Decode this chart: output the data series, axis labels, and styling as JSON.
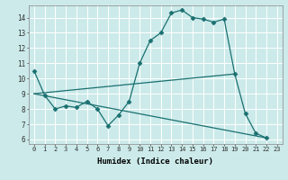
{
  "xlabel": "Humidex (Indice chaleur)",
  "bg_color": "#cceaea",
  "grid_color": "#ffffff",
  "line_color": "#1a7070",
  "xlim": [
    -0.5,
    23.5
  ],
  "ylim": [
    5.7,
    14.8
  ],
  "yticks": [
    6,
    7,
    8,
    9,
    10,
    11,
    12,
    13,
    14
  ],
  "xticks": [
    0,
    1,
    2,
    3,
    4,
    5,
    6,
    7,
    8,
    9,
    10,
    11,
    12,
    13,
    14,
    15,
    16,
    17,
    18,
    19,
    20,
    21,
    22,
    23
  ],
  "line1_x": [
    0,
    1,
    2,
    3,
    4,
    5,
    6,
    7,
    8,
    9,
    10,
    11,
    12,
    13,
    14,
    15,
    16,
    17,
    18,
    19,
    20,
    21,
    22
  ],
  "line1_y": [
    10.5,
    8.9,
    8.0,
    8.2,
    8.1,
    8.5,
    8.0,
    6.9,
    7.6,
    8.5,
    11.0,
    12.5,
    13.0,
    14.3,
    14.5,
    14.0,
    13.9,
    13.7,
    13.9,
    10.3,
    7.7,
    6.4,
    6.1
  ],
  "line2_x": [
    0,
    22
  ],
  "line2_y": [
    9.0,
    6.1
  ],
  "line3_x": [
    0,
    19
  ],
  "line3_y": [
    9.0,
    10.3
  ],
  "marker_style": "D",
  "marker_size": 2.5
}
